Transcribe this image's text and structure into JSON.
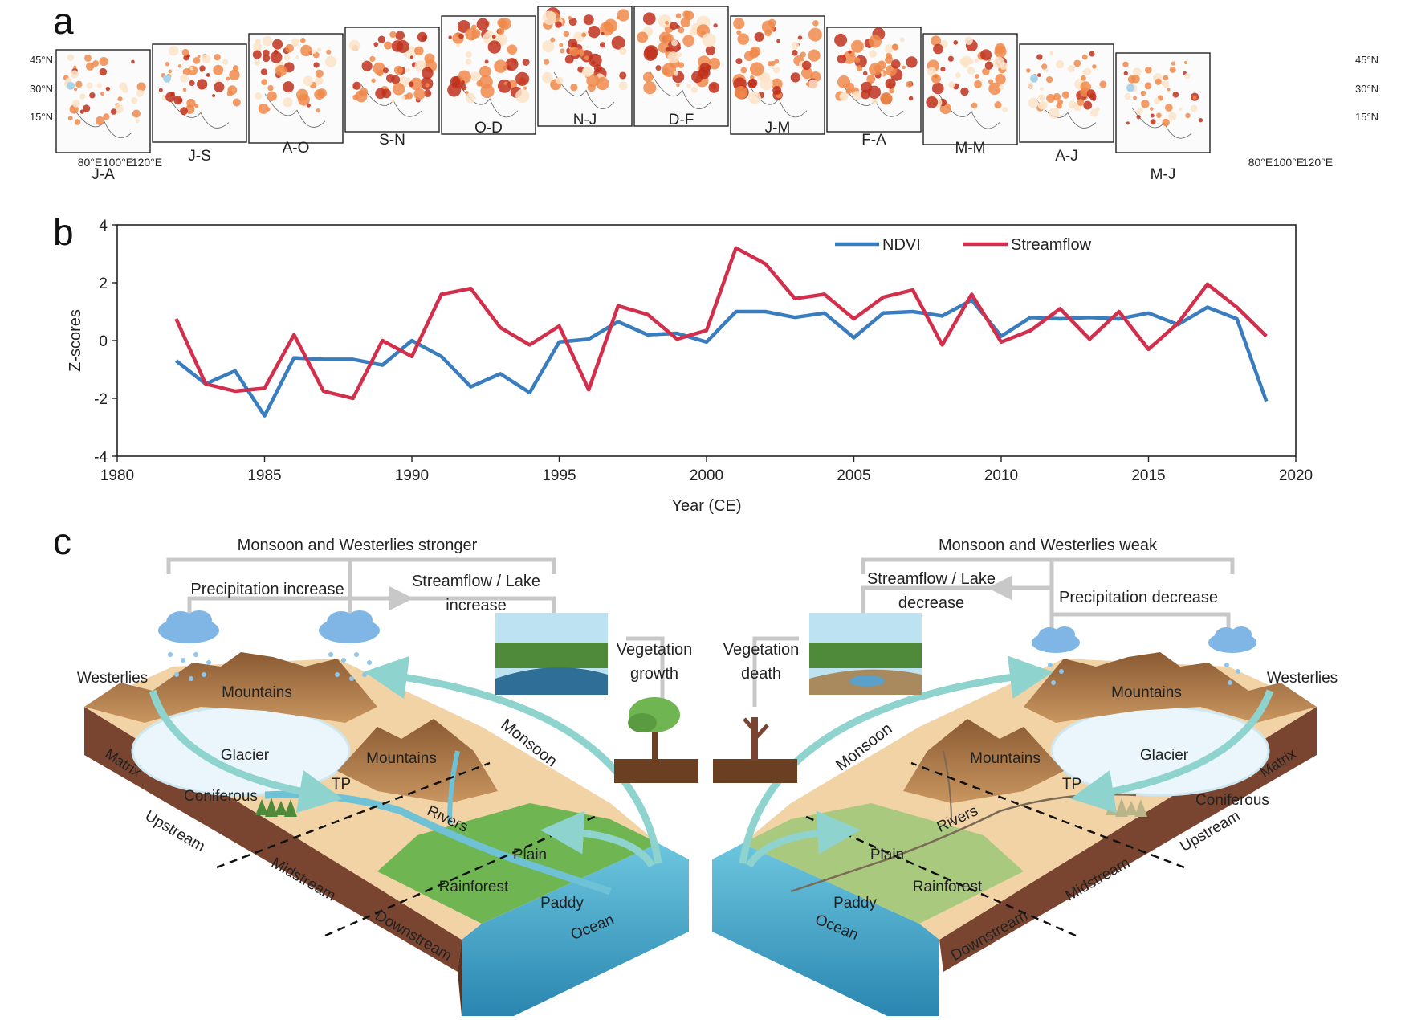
{
  "panels": {
    "a": "a",
    "b": "b",
    "c": "c"
  },
  "map_panel": {
    "months": [
      "J-A",
      "J-S",
      "A-O",
      "S-N",
      "O-D",
      "N-J",
      "D-F",
      "J-M",
      "F-A",
      "M-M",
      "A-J",
      "M-J"
    ],
    "lat_labels": [
      "45°N",
      "30°N",
      "15°N"
    ],
    "lon_labels": [
      "80°E",
      "100°E",
      "120°E"
    ],
    "colors": {
      "low": "#fbe3c8",
      "mid": "#f08a4b",
      "high": "#c0301c",
      "water": "#a9d3ea"
    }
  },
  "chart_data": {
    "type": "line",
    "xlabel": "Year (CE)",
    "ylabel": "Z-scores",
    "xlim": [
      1980,
      2020
    ],
    "ylim": [
      -4,
      4
    ],
    "xticks": [
      1980,
      1985,
      1990,
      1995,
      2000,
      2005,
      2010,
      2015,
      2020
    ],
    "yticks": [
      -4,
      -2,
      0,
      2,
      4
    ],
    "legend_position": "top-right",
    "x": [
      1982,
      1983,
      1984,
      1985,
      1986,
      1987,
      1988,
      1989,
      1990,
      1991,
      1992,
      1993,
      1994,
      1995,
      1996,
      1997,
      1998,
      1999,
      2000,
      2001,
      2002,
      2003,
      2004,
      2005,
      2006,
      2007,
      2008,
      2009,
      2010,
      2011,
      2012,
      2013,
      2014,
      2015,
      2016,
      2017,
      2018,
      2019
    ],
    "series": [
      {
        "name": "NDVI",
        "color": "#3a7dbf",
        "values": [
          -0.7,
          -1.5,
          -1.05,
          -2.6,
          -0.6,
          -0.65,
          -0.65,
          -0.85,
          0.0,
          -0.55,
          -1.6,
          -1.15,
          -1.8,
          -0.05,
          0.05,
          0.65,
          0.2,
          0.25,
          -0.05,
          1.0,
          1.0,
          0.8,
          0.95,
          0.1,
          0.95,
          1.0,
          0.85,
          1.4,
          0.15,
          0.8,
          0.75,
          0.8,
          0.75,
          0.95,
          0.55,
          1.15,
          0.75,
          -2.1
        ]
      },
      {
        "name": "Streamflow",
        "color": "#d12f4b",
        "values": [
          0.75,
          -1.5,
          -1.75,
          -1.65,
          0.2,
          -1.75,
          -2.0,
          0.0,
          -0.55,
          1.6,
          1.8,
          0.45,
          -0.15,
          0.5,
          -1.7,
          1.2,
          0.9,
          0.05,
          0.35,
          3.2,
          2.65,
          1.45,
          1.6,
          0.75,
          1.5,
          1.75,
          -0.15,
          1.6,
          -0.05,
          0.35,
          1.1,
          0.05,
          1.0,
          -0.3,
          0.6,
          1.95,
          1.15,
          0.15
        ]
      }
    ]
  },
  "diagram": {
    "left": {
      "header": "Monsoon and Westerlies stronger",
      "precip": "Precipitation increase",
      "stream_line1": "Streamflow / Lake",
      "stream_line2": "increase",
      "veg_line1": "Vegetation",
      "veg_line2": "growth",
      "westerlies": "Westerlies",
      "monsoon": "Monsoon",
      "labels": {
        "mountains1": "Mountains",
        "mountains2": "Mountains",
        "glacier": "Glacier",
        "matrix": "Matrix",
        "coniferous": "Coniferous",
        "tp": "TP",
        "rivers": "Rivers",
        "upstream": "Upstream",
        "midstream": "Midstream",
        "downstream": "Downstream",
        "plain": "Plain",
        "rainforest": "Rainforest",
        "paddy": "Paddy",
        "ocean": "Ocean"
      }
    },
    "right": {
      "header": "Monsoon and Westerlies weak",
      "precip": "Precipitation decrease",
      "stream_line1": "Streamflow / Lake",
      "stream_line2": "decrease",
      "veg_line1": "Vegetation",
      "veg_line2": "death",
      "westerlies": "Westerlies",
      "monsoon": "Monsoon",
      "labels": {
        "mountains1": "Mountains",
        "mountains2": "Mountains",
        "glacier": "Glacier",
        "matrix": "Matrix",
        "coniferous": "Coniferous",
        "tp": "TP",
        "rivers": "Rivers",
        "upstream": "Upstream",
        "midstream": "Midstream",
        "downstream": "Downstream",
        "plain": "Plain",
        "rainforest": "Rainforest",
        "paddy": "Paddy",
        "ocean": "Ocean"
      }
    },
    "colors": {
      "arrow": "#8fd3cf",
      "bracket": "#c8c8c8",
      "soil": "#7a4530",
      "sand": "#f1d3a6",
      "mountain": "#b9834d",
      "green": "#6fb552",
      "water": "#6fc1d6",
      "ocean": "#3f9fc1"
    }
  }
}
